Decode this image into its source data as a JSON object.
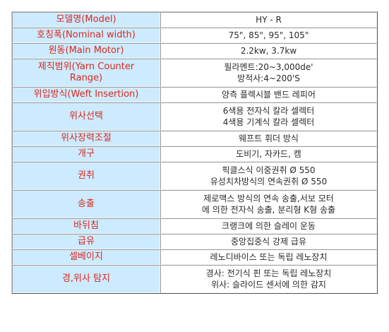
{
  "label_color": "#d8281e",
  "label_bg": "#cdebff",
  "rows": [
    {
      "label": [
        "모델명(Model)"
      ],
      "value": [
        "HY - R"
      ]
    },
    {
      "label": [
        "호칭폭(Nominal width)"
      ],
      "value": [
        "75\", 85\", 95\", 105\""
      ]
    },
    {
      "label": [
        "원동(Main Motor)"
      ],
      "value": [
        "2.2kw, 3.7kw"
      ]
    },
    {
      "label": [
        "제직범위(Yarn Counter",
        "Range)"
      ],
      "value": [
        "필라멘트:20~3,000de'",
        "방적사:4~200'S"
      ]
    },
    {
      "label": [
        "위입방식(Weft Insertion)"
      ],
      "value": [
        "양측 플렉시블 밴드 레피어"
      ]
    },
    {
      "label": [
        "위사선택"
      ],
      "value": [
        "6색용 전자식 칼라 셀렉터",
        "4색용 기계식 칼라 셀렉터"
      ]
    },
    {
      "label": [
        "위사장력조절"
      ],
      "value": [
        "웨프트 휘더 방식"
      ]
    },
    {
      "label": [
        "개구"
      ],
      "value": [
        "도비기, 자카드, 캠"
      ]
    },
    {
      "label": [
        "권취"
      ],
      "value": [
        "픽클스식 이중권취  Ø 550",
        "유성치차방식의 연속권취  Ø 550"
      ]
    },
    {
      "label": [
        "송출"
      ],
      "value": [
        "제로맥스 방식의 연속 송출,서보 모터",
        "에 의한 전자식 송출, 분리형 K형 송출"
      ]
    },
    {
      "label": [
        "바뒤침"
      ],
      "value": [
        "크랭크에 의한 슬레이 운동"
      ]
    },
    {
      "label": [
        "급유"
      ],
      "value": [
        "중앙집중식 강제 급유"
      ]
    },
    {
      "label": [
        "셀베이지"
      ],
      "value": [
        "레노디바이스 또는 독립 레노장치"
      ]
    },
    {
      "label": [
        "경,위사 탐지"
      ],
      "value": [
        "경사: 전기식 핀 또는 독립 레노장치",
        "위사: 슬라이드 센서에 의한 감지"
      ]
    }
  ]
}
